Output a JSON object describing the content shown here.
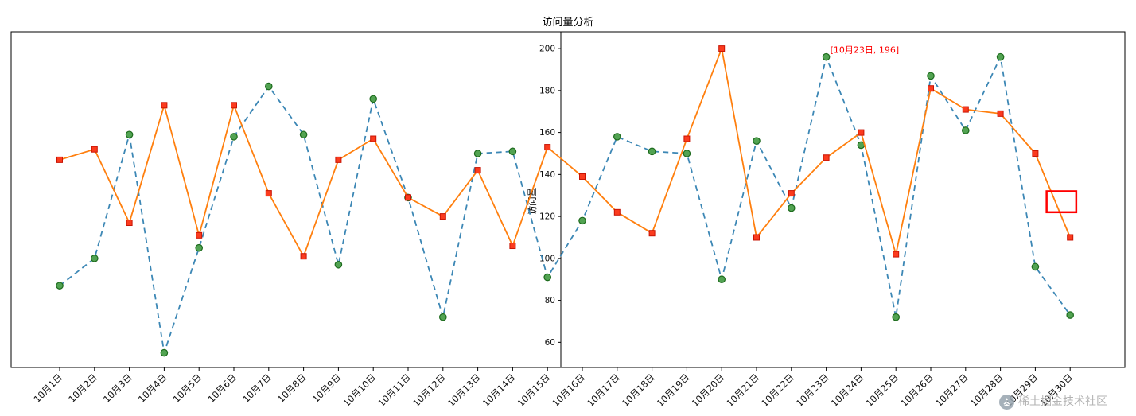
{
  "chart_data": {
    "type": "line",
    "title": "访问量分析",
    "ylabel": "访问量",
    "xlabel": "",
    "grid": false,
    "legend": "none",
    "x_tick_rotation": 45,
    "categories": [
      "10月1日",
      "10月2日",
      "10月3日",
      "10月4日",
      "10月5日",
      "10月6日",
      "10月7日",
      "10月8日",
      "10月9日",
      "10月10日",
      "10月11日",
      "10月12日",
      "10月13日",
      "10月14日",
      "10月15日",
      "10月16日",
      "10月17日",
      "10月18日",
      "10月19日",
      "10月20日",
      "10月21日",
      "10月22日",
      "10月23日",
      "10月24日",
      "10月25日",
      "10月26日",
      "10月27日",
      "10月28日",
      "10月29日",
      "10月30日"
    ],
    "yticks": [
      60,
      80,
      100,
      120,
      140,
      160,
      180,
      200
    ],
    "ylim": [
      48,
      208
    ],
    "series": [
      {
        "name": "blue-dashed-series",
        "line_style": "dashed",
        "color": "#3c87b5",
        "marker": "circle",
        "marker_color": "#52a352",
        "marker_edge": "#1d6b1d",
        "values": [
          87,
          100,
          159,
          55,
          105,
          158,
          182,
          159,
          97,
          176,
          129,
          72,
          150,
          151,
          91,
          118,
          158,
          151,
          150,
          90,
          156,
          124,
          196,
          154,
          72,
          187,
          161,
          196,
          96,
          73
        ]
      },
      {
        "name": "orange-solid-series",
        "line_style": "solid",
        "color": "#ff7f0e",
        "marker": "square",
        "marker_color": "#fb3b1e",
        "marker_edge": "#c81404",
        "values": [
          147,
          152,
          117,
          173,
          111,
          173,
          131,
          101,
          147,
          157,
          129,
          120,
          142,
          106,
          153,
          139,
          122,
          112,
          157,
          200,
          110,
          131,
          148,
          160,
          102,
          181,
          171,
          169,
          150,
          110
        ]
      }
    ],
    "annotation": {
      "text": "[10月23日, 196]",
      "category": "10月23日",
      "value": 196,
      "color": "#ff0000"
    },
    "highlight": {
      "x_index": 28.75,
      "value": 127,
      "width_categories": 0.85,
      "height_values": 10,
      "color": "#ff0000"
    }
  },
  "watermark": {
    "text": "稀土掘金技术社区"
  }
}
